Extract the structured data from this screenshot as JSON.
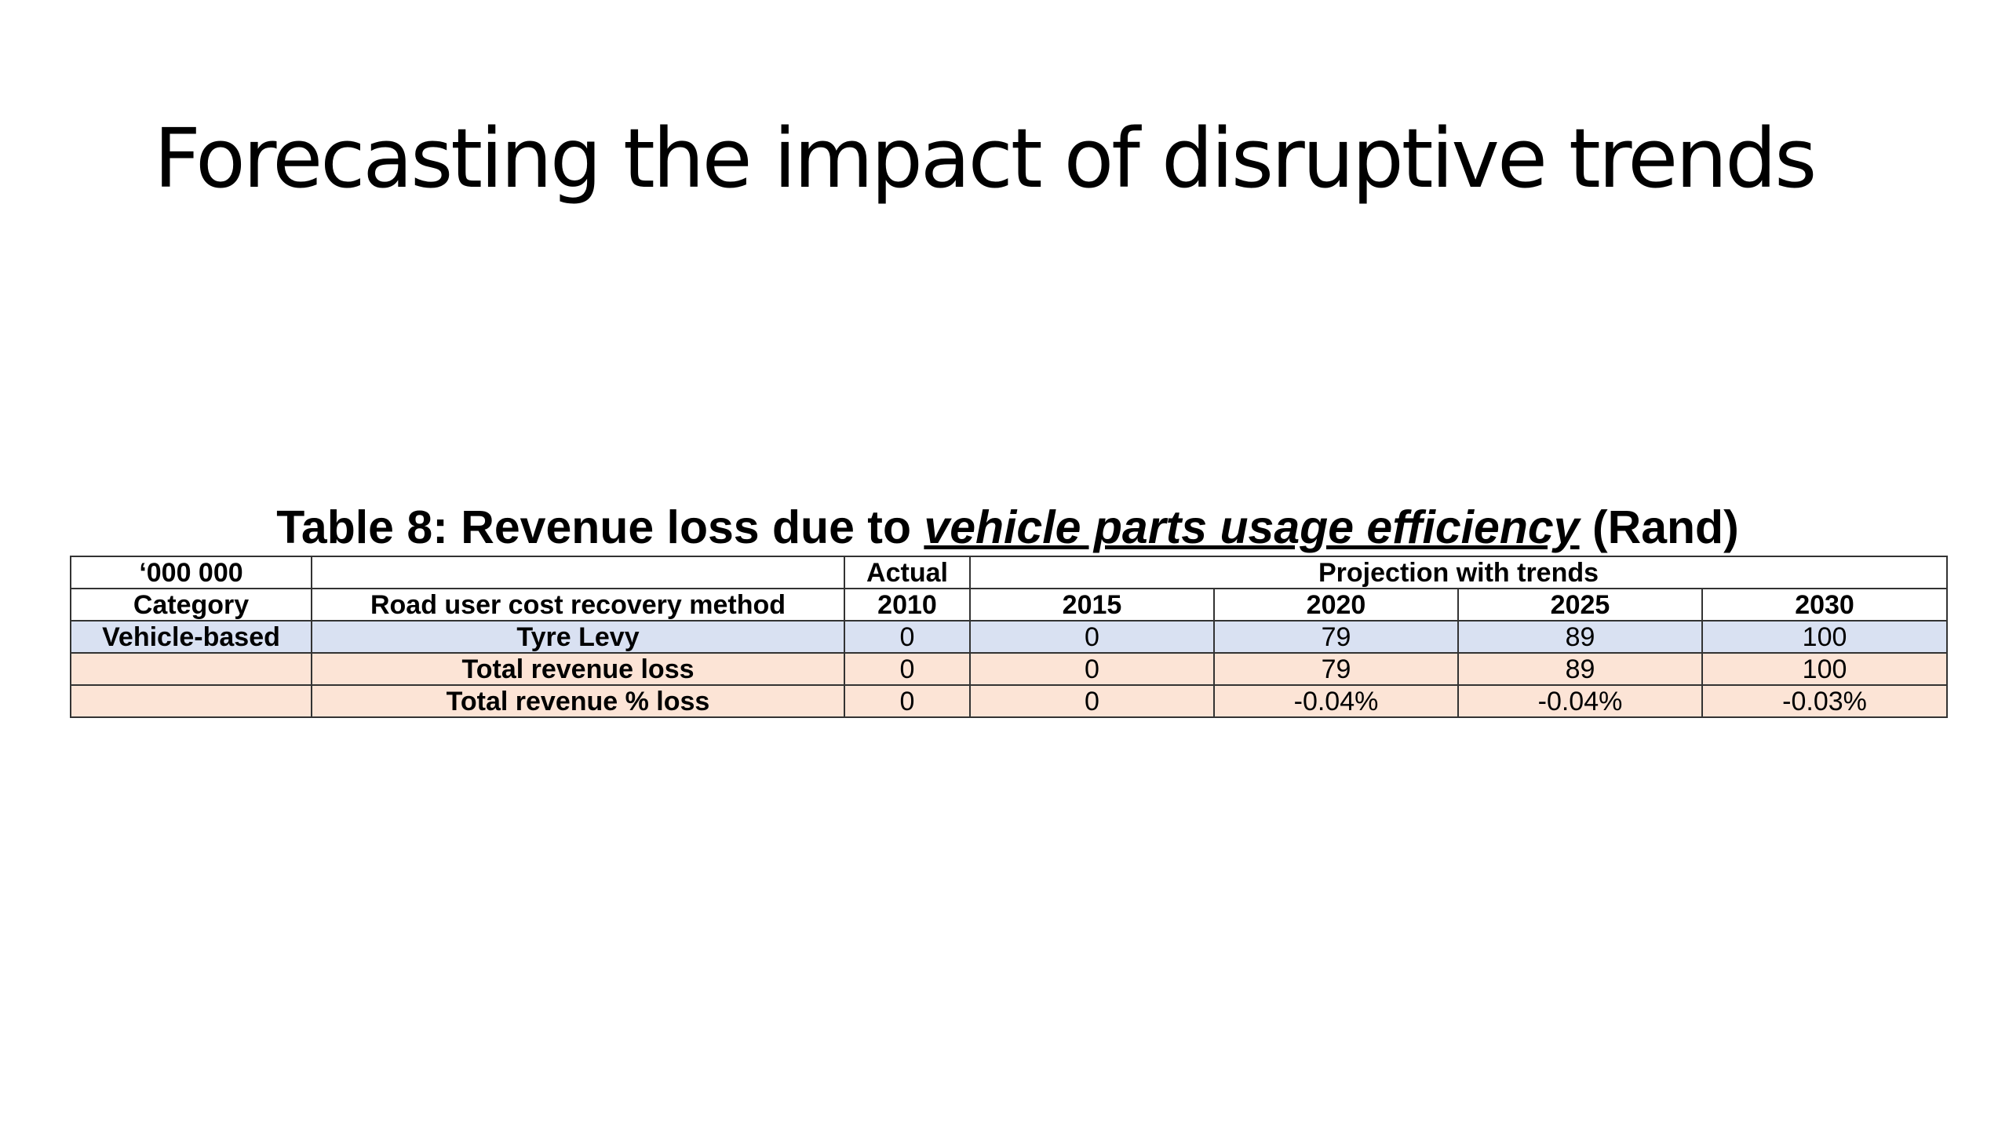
{
  "slide": {
    "title": "Forecasting the impact of disruptive trends"
  },
  "table": {
    "caption_prefix": "Table 8: Revenue loss due to ",
    "caption_emphasis": "vehicle parts usage efficiency",
    "caption_suffix": " (Rand)",
    "header_row_1": {
      "unit": "‘000 000",
      "method_blank": "",
      "actual": "Actual",
      "projection": "Projection with trends"
    },
    "header_row_2": {
      "category": "Category",
      "method": "Road user cost recovery method",
      "years": [
        "2010",
        "2015",
        "2020",
        "2025",
        "2030"
      ]
    },
    "rows": [
      {
        "category": "Vehicle-based",
        "method": "Tyre Levy",
        "values": [
          "0",
          "0",
          "79",
          "89",
          "100"
        ],
        "fill": "#d9e1f2"
      },
      {
        "category": "",
        "method": "Total revenue loss",
        "values": [
          "0",
          "0",
          "79",
          "89",
          "100"
        ],
        "fill": "#fce4d6"
      },
      {
        "category": "",
        "method": "Total revenue % loss",
        "values": [
          "0",
          "0",
          "-0.04%",
          "-0.04%",
          "-0.03%"
        ],
        "fill": "#fce4d6"
      }
    ]
  }
}
